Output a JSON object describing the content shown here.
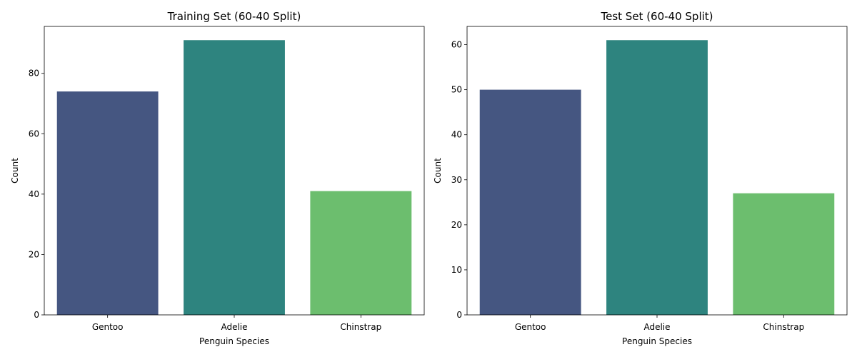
{
  "chart_data": [
    {
      "type": "bar",
      "title": "Training Set (60-40 Split)",
      "xlabel": "Penguin Species",
      "ylabel": "Count",
      "categories": [
        "Gentoo",
        "Adelie",
        "Chinstrap"
      ],
      "values": [
        74,
        91,
        41
      ],
      "colors": [
        "#455681",
        "#2e847f",
        "#6cbe6e"
      ],
      "ylim": [
        0,
        95.55
      ],
      "yticks": [
        0,
        20,
        40,
        60,
        80
      ],
      "grid": false
    },
    {
      "type": "bar",
      "title": "Test Set (60-40 Split)",
      "xlabel": "Penguin Species",
      "ylabel": "Count",
      "categories": [
        "Gentoo",
        "Adelie",
        "Chinstrap"
      ],
      "values": [
        50,
        61,
        27
      ],
      "colors": [
        "#455681",
        "#2e847f",
        "#6cbe6e"
      ],
      "ylim": [
        0,
        64.05
      ],
      "yticks": [
        0,
        10,
        20,
        30,
        40,
        50,
        60
      ],
      "grid": false
    }
  ]
}
